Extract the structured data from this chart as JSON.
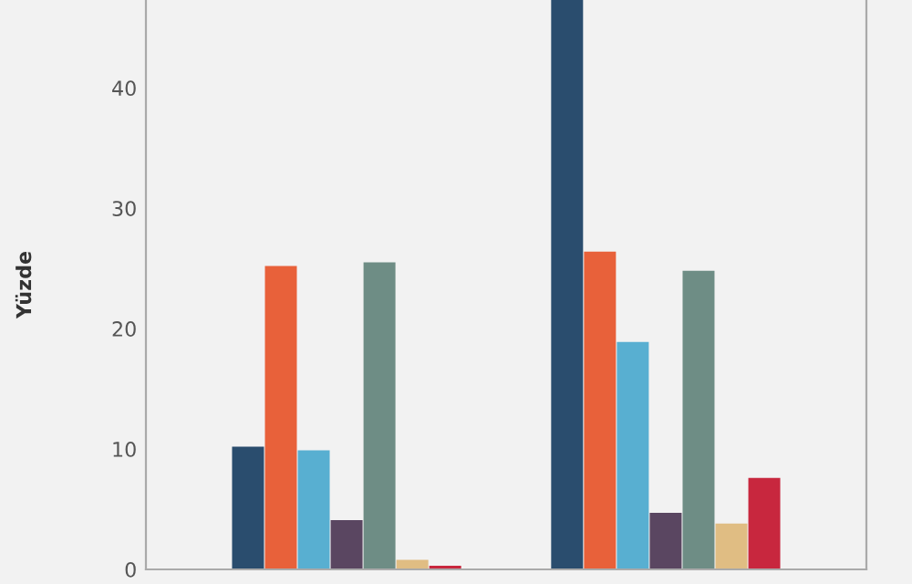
{
  "chart_data": {
    "type": "bar",
    "ylabel": "Yüzde",
    "categories": [
      null,
      null
    ],
    "series": [
      {
        "color": "#2a4d6e",
        "values": [
          10.2,
          47.3
        ]
      },
      {
        "color": "#e8613a",
        "values": [
          25.2,
          26.4
        ]
      },
      {
        "color": "#58afd1",
        "values": [
          9.9,
          18.9
        ]
      },
      {
        "color": "#5a4661",
        "values": [
          4.1,
          4.7
        ]
      },
      {
        "color": "#6e8d85",
        "values": [
          25.5,
          24.8
        ]
      },
      {
        "color": "#e0bd83",
        "values": [
          0.8,
          3.8
        ]
      },
      {
        "color": "#c8273e",
        "values": [
          0.3,
          7.6
        ]
      }
    ],
    "ylim": [
      0,
      47.3
    ],
    "yticks": [
      0,
      10,
      20,
      30,
      40
    ],
    "grid": false,
    "legend": false
  }
}
